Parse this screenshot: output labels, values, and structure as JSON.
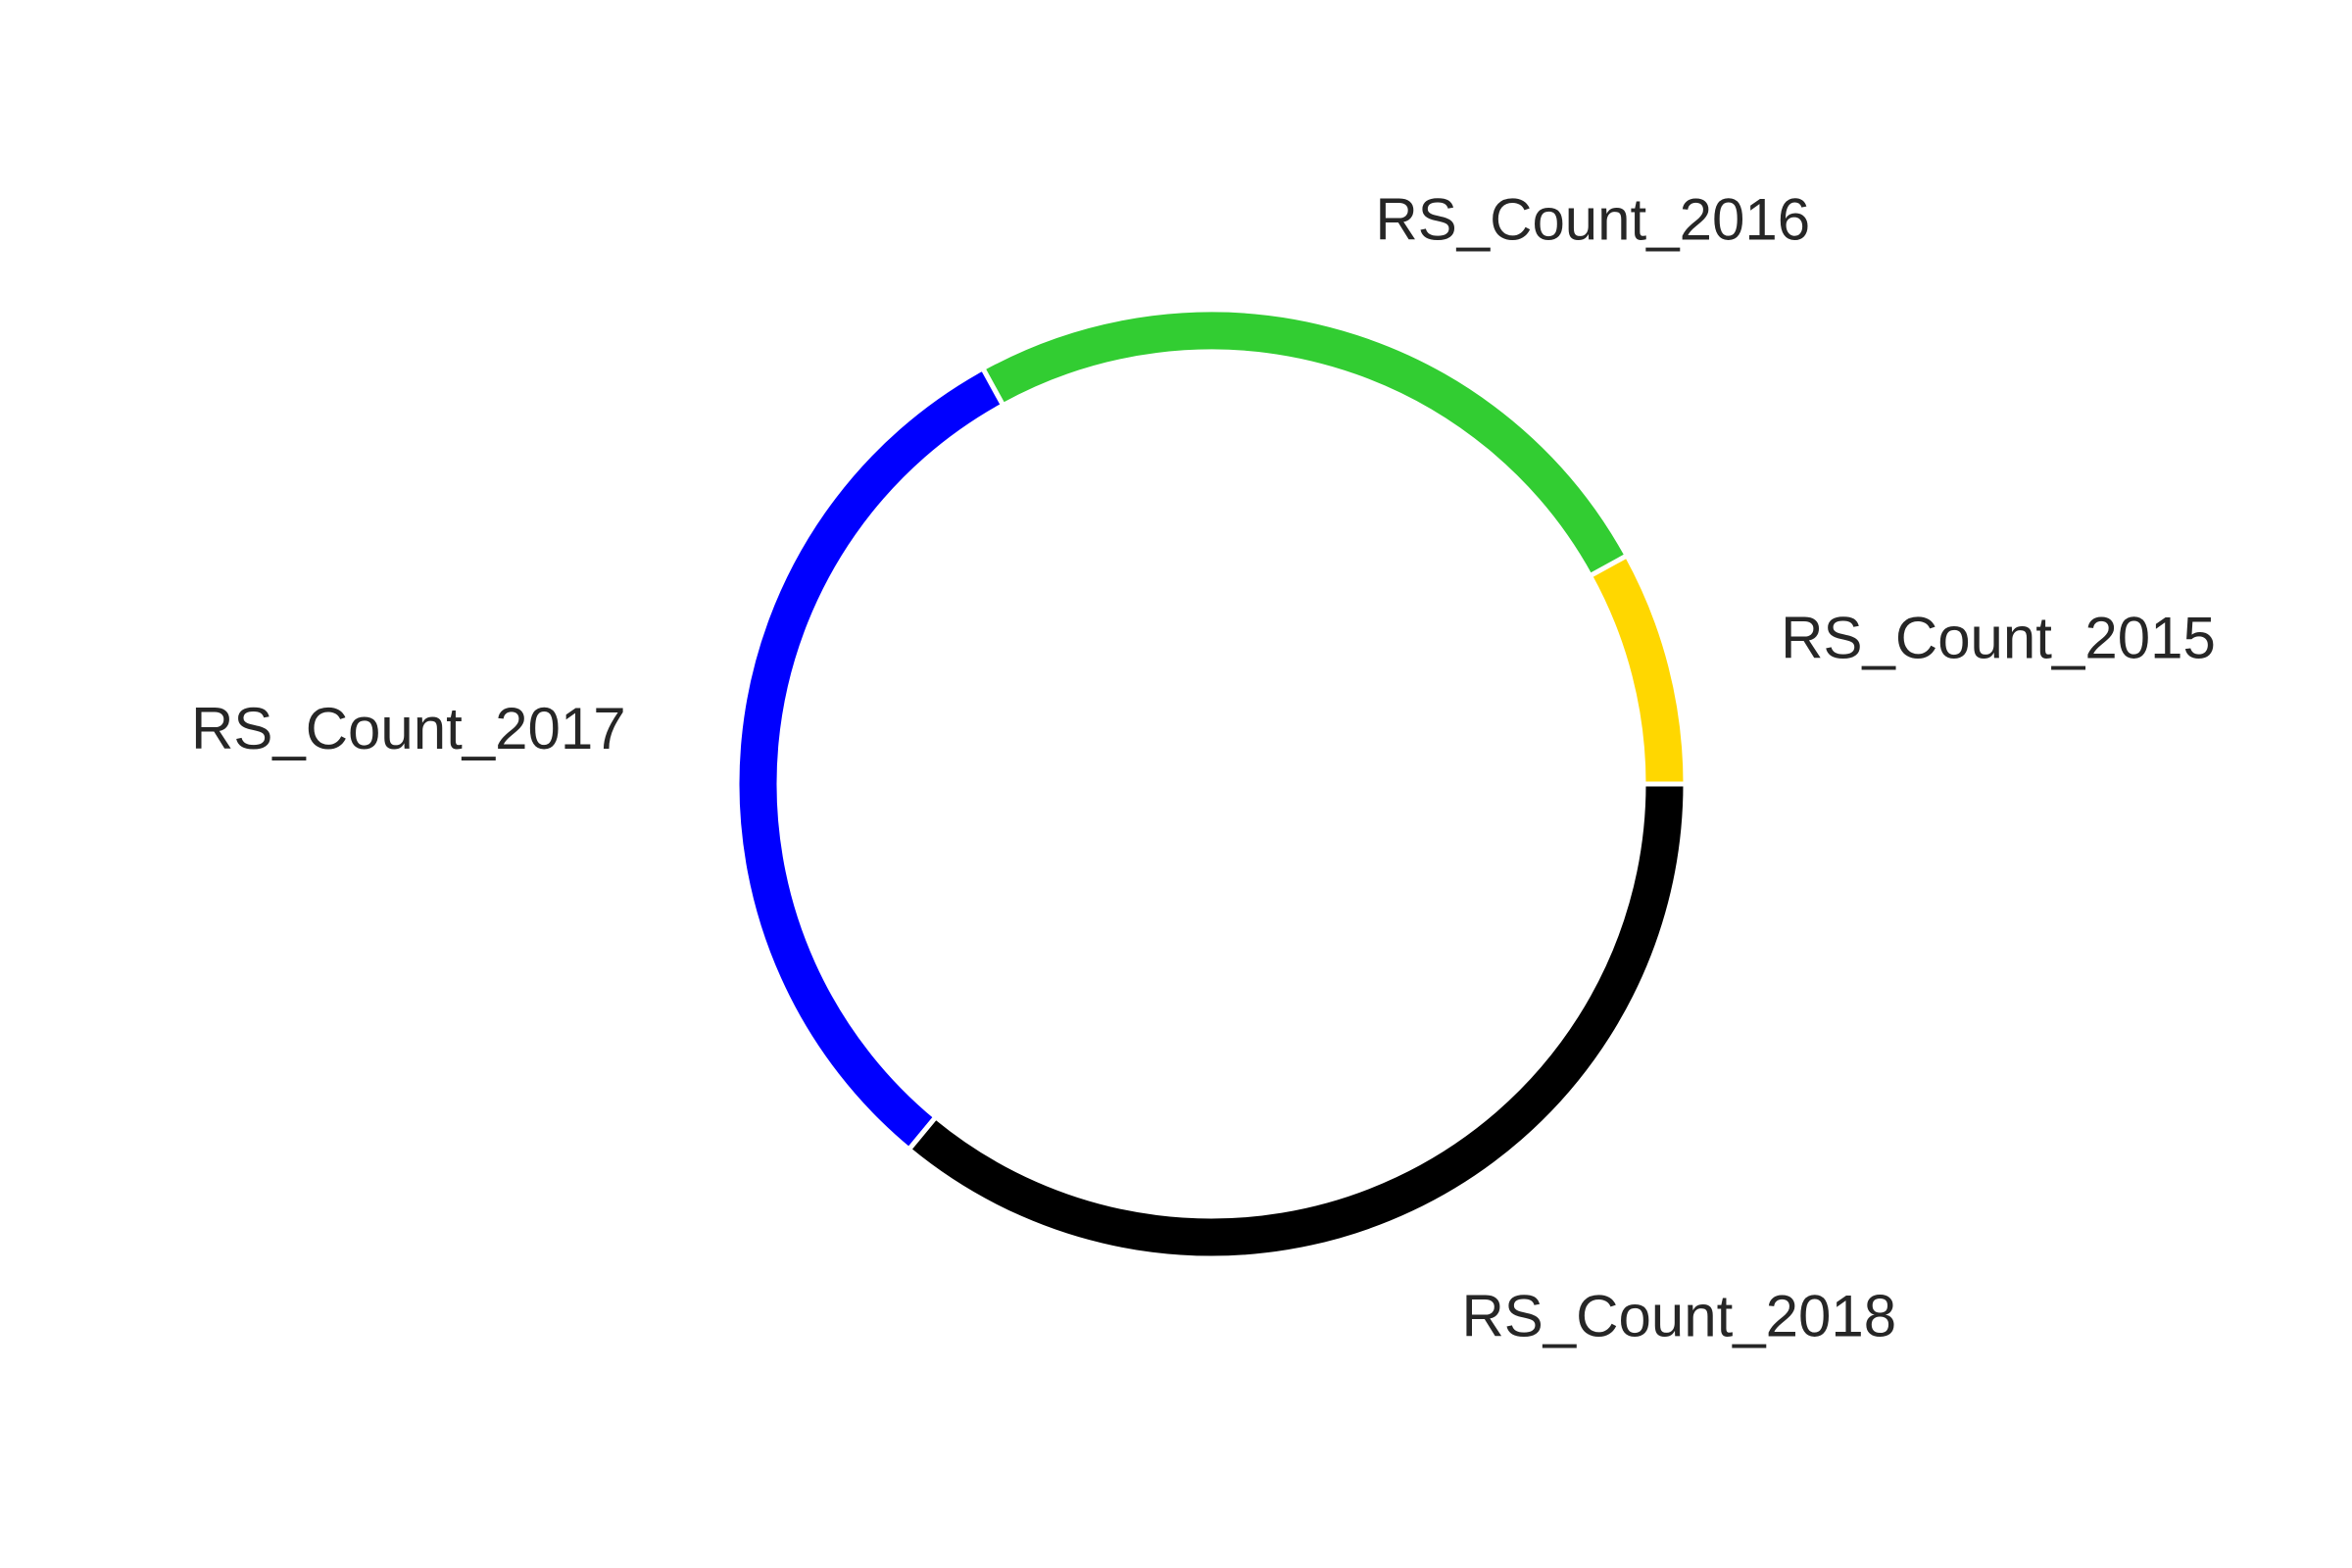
{
  "chart_data": {
    "type": "pie",
    "variant": "donut",
    "title": "",
    "slices": [
      {
        "label": "RS_Count_2015",
        "value": 8,
        "color": "#FFD700"
      },
      {
        "label": "RS_Count_2016",
        "value": 25,
        "color": "#32CD32"
      },
      {
        "label": "RS_Count_2017",
        "value": 31,
        "color": "#0000FF"
      },
      {
        "label": "RS_Count_2018",
        "value": 36,
        "color": "#000000"
      }
    ],
    "start_angle_deg": 0,
    "direction": "counterclockwise",
    "legend": "none",
    "slice_labels": "outside"
  }
}
